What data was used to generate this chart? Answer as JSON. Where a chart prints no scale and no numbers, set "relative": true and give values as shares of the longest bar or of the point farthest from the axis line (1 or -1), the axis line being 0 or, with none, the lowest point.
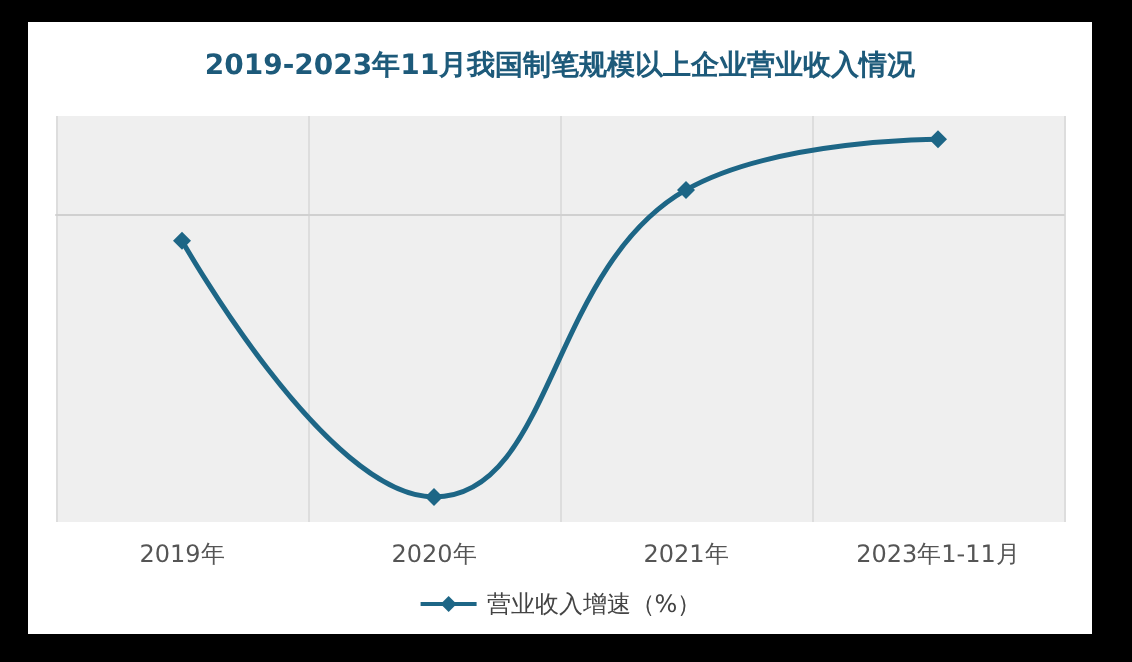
{
  "chart_data": {
    "type": "line",
    "title": "2019-2023年11月我国制笔规模以上企业营业收入情况",
    "categories": [
      "2019年",
      "2020年",
      "2021年",
      "2023年1-11月"
    ],
    "series": [
      {
        "name": "营业收入增速（%）",
        "color": "#1d6686",
        "values": [
          -0.09,
          -1,
          0.09,
          0.27
        ]
      }
    ],
    "relative": true,
    "marker": "diamond",
    "grid": "x",
    "legend": "bottom"
  }
}
